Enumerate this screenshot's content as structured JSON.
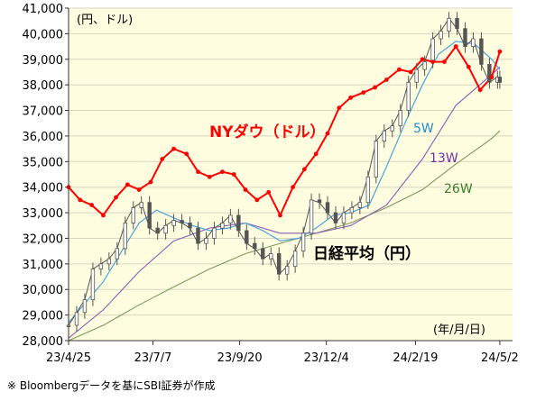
{
  "chart_data": {
    "type": "line",
    "unit_label": "(円、ドル)",
    "date_format_label": "(年/月/日)",
    "source_note": "※ Bloombergデータを基にSBI証券が作成",
    "ylim": [
      28000,
      41000
    ],
    "y_ticks": [
      "28,000",
      "29,000",
      "30,000",
      "31,000",
      "32,000",
      "33,000",
      "34,000",
      "35,000",
      "36,000",
      "37,000",
      "38,000",
      "39,000",
      "40,000",
      "41,000"
    ],
    "y_tick_values": [
      28000,
      29000,
      30000,
      31000,
      32000,
      33000,
      34000,
      35000,
      36000,
      37000,
      38000,
      39000,
      40000,
      41000
    ],
    "x_ticks": [
      "23/4/25",
      "23/7/7",
      "23/9/20",
      "23/12/4",
      "24/2/19",
      "24/5/2"
    ],
    "x_tick_dates": [
      "2023-04-25",
      "2023-07-07",
      "2023-09-20",
      "2023-12-04",
      "2024-02-19",
      "2024-05-02"
    ],
    "annotations": [
      {
        "text": "NYダウ（ドル）",
        "color": "#ff0000"
      },
      {
        "text": "日経平均（円）",
        "color": "#000000"
      },
      {
        "text": "5W",
        "color": "#1f8fc8"
      },
      {
        "text": "13W",
        "color": "#7030a0"
      },
      {
        "text": "26W",
        "color": "#3a7d2c"
      }
    ],
    "colors": {
      "dow": "#ff0000",
      "nikkei_candle": "#555555",
      "ma5": "#4aa3d9",
      "ma13": "#8e59b5",
      "ma26": "#7a9c5e",
      "plot_bg": "#fffde0"
    },
    "series": [
      {
        "key": "dow",
        "name": "NYダウ（ドル）",
        "x": [
          "2023-04-25",
          "2023-05-05",
          "2023-05-15",
          "2023-05-25",
          "2023-06-05",
          "2023-06-15",
          "2023-06-25",
          "2023-07-05",
          "2023-07-15",
          "2023-07-25",
          "2023-08-05",
          "2023-08-15",
          "2023-08-25",
          "2023-09-05",
          "2023-09-15",
          "2023-09-25",
          "2023-10-05",
          "2023-10-15",
          "2023-10-25",
          "2023-11-05",
          "2023-11-15",
          "2023-11-25",
          "2023-12-05",
          "2023-12-15",
          "2023-12-25",
          "2024-01-05",
          "2024-01-15",
          "2024-01-25",
          "2024-02-05",
          "2024-02-15",
          "2024-02-25",
          "2024-03-05",
          "2024-03-15",
          "2024-03-25",
          "2024-04-05",
          "2024-04-15",
          "2024-04-25",
          "2024-05-02"
        ],
        "values": [
          34000,
          33500,
          33300,
          32900,
          33600,
          34100,
          33900,
          34200,
          35100,
          35500,
          35300,
          34600,
          34400,
          34600,
          34500,
          33900,
          33500,
          33800,
          32900,
          34000,
          34700,
          35300,
          36100,
          37100,
          37500,
          37700,
          37900,
          38200,
          38600,
          38500,
          39000,
          38900,
          38900,
          39500,
          38700,
          37800,
          38300,
          39300
        ]
      },
      {
        "key": "ma5",
        "name": "5W",
        "x": [
          "2023-04-25",
          "2023-05-10",
          "2023-05-25",
          "2023-06-10",
          "2023-06-25",
          "2023-07-10",
          "2023-07-25",
          "2023-08-10",
          "2023-08-25",
          "2023-09-10",
          "2023-09-25",
          "2023-10-10",
          "2023-10-25",
          "2023-11-10",
          "2023-11-25",
          "2023-12-10",
          "2023-12-25",
          "2024-01-10",
          "2024-01-25",
          "2024-02-10",
          "2024-02-25",
          "2024-03-10",
          "2024-03-25",
          "2024-04-10",
          "2024-04-25",
          "2024-05-02"
        ],
        "values": [
          28700,
          29500,
          30300,
          31500,
          32600,
          33100,
          32800,
          32500,
          32300,
          32400,
          32600,
          32300,
          31900,
          32000,
          32400,
          32900,
          33000,
          33300,
          34800,
          36500,
          38000,
          39200,
          39700,
          39600,
          39000,
          38600
        ]
      },
      {
        "key": "ma13",
        "name": "13W",
        "x": [
          "2023-04-25",
          "2023-05-25",
          "2023-06-25",
          "2023-07-25",
          "2023-08-25",
          "2023-09-25",
          "2023-10-25",
          "2023-11-25",
          "2023-12-25",
          "2024-01-25",
          "2024-02-25",
          "2024-03-25",
          "2024-04-25",
          "2024-05-02"
        ],
        "values": [
          28100,
          29200,
          30700,
          31900,
          32400,
          32600,
          32200,
          32200,
          32500,
          33300,
          35100,
          37200,
          38400,
          38700
        ]
      },
      {
        "key": "ma26",
        "name": "26W",
        "x": [
          "2023-04-25",
          "2023-05-25",
          "2023-06-25",
          "2023-07-25",
          "2023-08-25",
          "2023-09-25",
          "2023-10-25",
          "2023-11-25",
          "2023-12-25",
          "2024-01-25",
          "2024-02-25",
          "2024-03-25",
          "2024-04-25",
          "2024-05-02"
        ],
        "values": [
          28000,
          28600,
          29400,
          30100,
          30800,
          31400,
          31800,
          32200,
          32600,
          33200,
          33900,
          34900,
          35900,
          36200
        ]
      },
      {
        "key": "nikkei",
        "name": "日経平均（円）",
        "x": [
          "2023-04-25",
          "2023-05-02",
          "2023-05-09",
          "2023-05-16",
          "2023-05-23",
          "2023-05-30",
          "2023-06-06",
          "2023-06-13",
          "2023-06-20",
          "2023-06-27",
          "2023-07-04",
          "2023-07-11",
          "2023-07-18",
          "2023-07-25",
          "2023-08-01",
          "2023-08-08",
          "2023-08-15",
          "2023-08-22",
          "2023-08-29",
          "2023-09-05",
          "2023-09-12",
          "2023-09-19",
          "2023-09-26",
          "2023-10-03",
          "2023-10-10",
          "2023-10-17",
          "2023-10-24",
          "2023-10-31",
          "2023-11-07",
          "2023-11-14",
          "2023-11-21",
          "2023-11-28",
          "2023-12-05",
          "2023-12-12",
          "2023-12-19",
          "2023-12-26",
          "2024-01-02",
          "2024-01-09",
          "2024-01-16",
          "2024-01-23",
          "2024-01-30",
          "2024-02-06",
          "2024-02-13",
          "2024-02-20",
          "2024-02-27",
          "2024-03-05",
          "2024-03-12",
          "2024-03-19",
          "2024-03-26",
          "2024-04-02",
          "2024-04-09",
          "2024-04-16",
          "2024-04-23",
          "2024-04-30",
          "2024-05-02"
        ],
        "values": [
          28600,
          29100,
          29600,
          30800,
          31000,
          31200,
          31600,
          32600,
          33200,
          33400,
          32400,
          32200,
          32500,
          32700,
          32600,
          32400,
          31800,
          32000,
          32400,
          32600,
          32900,
          32300,
          31800,
          31600,
          31200,
          31400,
          30600,
          30900,
          31500,
          32200,
          33500,
          33400,
          33000,
          32600,
          33000,
          33200,
          33400,
          34400,
          35800,
          36200,
          36400,
          37000,
          38100,
          38600,
          38900,
          39800,
          40100,
          40600,
          40200,
          39500,
          39800,
          38800,
          38100,
          38300,
          38100
        ]
      }
    ]
  }
}
